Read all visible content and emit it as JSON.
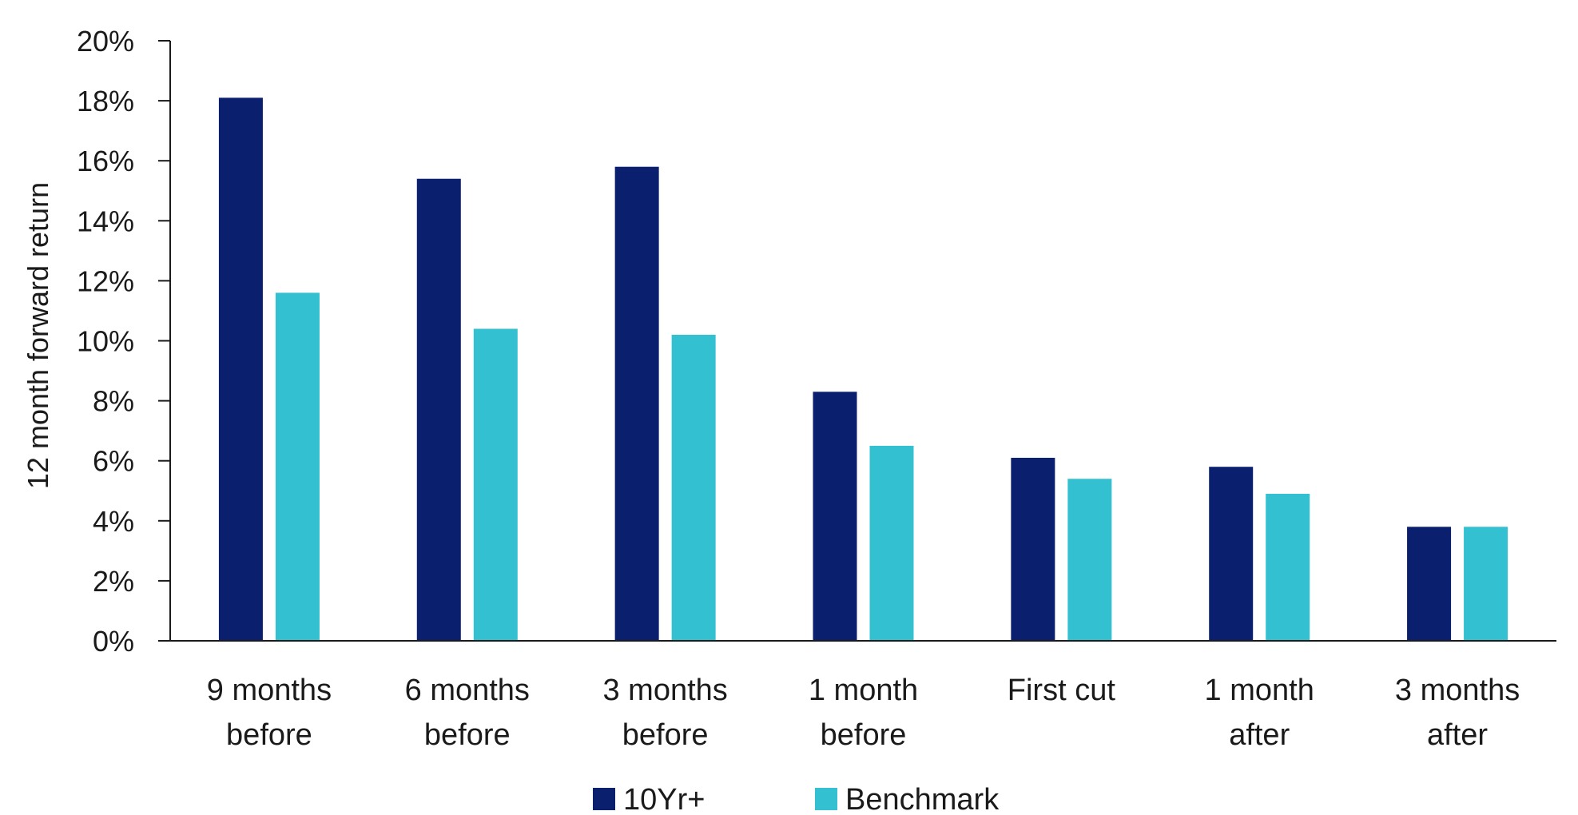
{
  "chart_data": {
    "type": "bar",
    "title": "",
    "xlabel": "",
    "ylabel": "12 month forward return",
    "ylim": [
      0,
      20
    ],
    "y_ticks": [
      "0%",
      "2%",
      "4%",
      "6%",
      "8%",
      "10%",
      "12%",
      "14%",
      "16%",
      "18%",
      "20%"
    ],
    "y_tick_values": [
      0,
      2,
      4,
      6,
      8,
      10,
      12,
      14,
      16,
      18,
      20
    ],
    "grid": false,
    "legend_position": "bottom",
    "categories": [
      [
        "9 months",
        "before"
      ],
      [
        "6 months",
        "before"
      ],
      [
        "3 months",
        "before"
      ],
      [
        "1 month",
        "before"
      ],
      [
        "First cut"
      ],
      [
        "1 month",
        "after"
      ],
      [
        "3 months",
        "after"
      ]
    ],
    "series": [
      {
        "name": "10Yr+",
        "color": "#0b1f6f",
        "values": [
          18.1,
          15.4,
          15.8,
          8.3,
          6.1,
          5.8,
          3.8
        ]
      },
      {
        "name": "Benchmark",
        "color": "#33c1d1",
        "values": [
          11.6,
          10.4,
          10.2,
          6.5,
          5.4,
          4.9,
          3.8
        ]
      }
    ]
  }
}
